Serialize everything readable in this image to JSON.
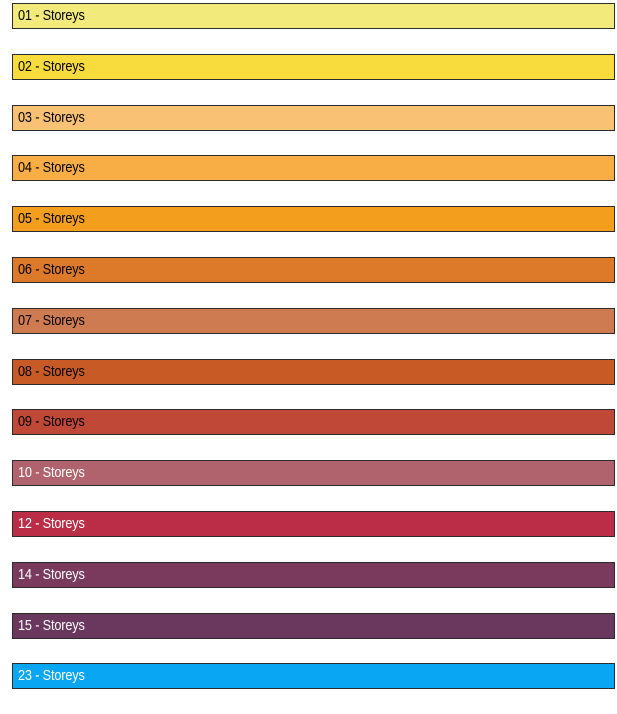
{
  "legend": {
    "items": [
      {
        "label": "01 - Storeys",
        "color": "#F2EA7A",
        "text_color": "#000000"
      },
      {
        "label": "02 - Storeys",
        "color": "#F8DB3C",
        "text_color": "#000000"
      },
      {
        "label": "03 - Storeys",
        "color": "#F8C173",
        "text_color": "#000000"
      },
      {
        "label": "04 - Storeys",
        "color": "#F8AD45",
        "text_color": "#000000"
      },
      {
        "label": "05 - Storeys",
        "color": "#F49E1D",
        "text_color": "#000000"
      },
      {
        "label": "06 - Storeys",
        "color": "#DC7A2A",
        "text_color": "#000000"
      },
      {
        "label": "07 - Storeys",
        "color": "#CF7B52",
        "text_color": "#000000"
      },
      {
        "label": "08 - Storeys",
        "color": "#C85A25",
        "text_color": "#000000"
      },
      {
        "label": "09 - Storeys",
        "color": "#BF4837",
        "text_color": "#000000"
      },
      {
        "label": "10 - Storeys",
        "color": "#B0636C",
        "text_color": "#FFFFFF"
      },
      {
        "label": "12 - Storeys",
        "color": "#BB2D46",
        "text_color": "#FFFFFF"
      },
      {
        "label": "14 - Storeys",
        "color": "#7A3A5E",
        "text_color": "#FFFFFF"
      },
      {
        "label": "15 - Storeys",
        "color": "#6A385E",
        "text_color": "#FFFFFF"
      },
      {
        "label": "23 - Storeys",
        "color": "#08A6F3",
        "text_color": "#FFFFFF"
      }
    ]
  }
}
